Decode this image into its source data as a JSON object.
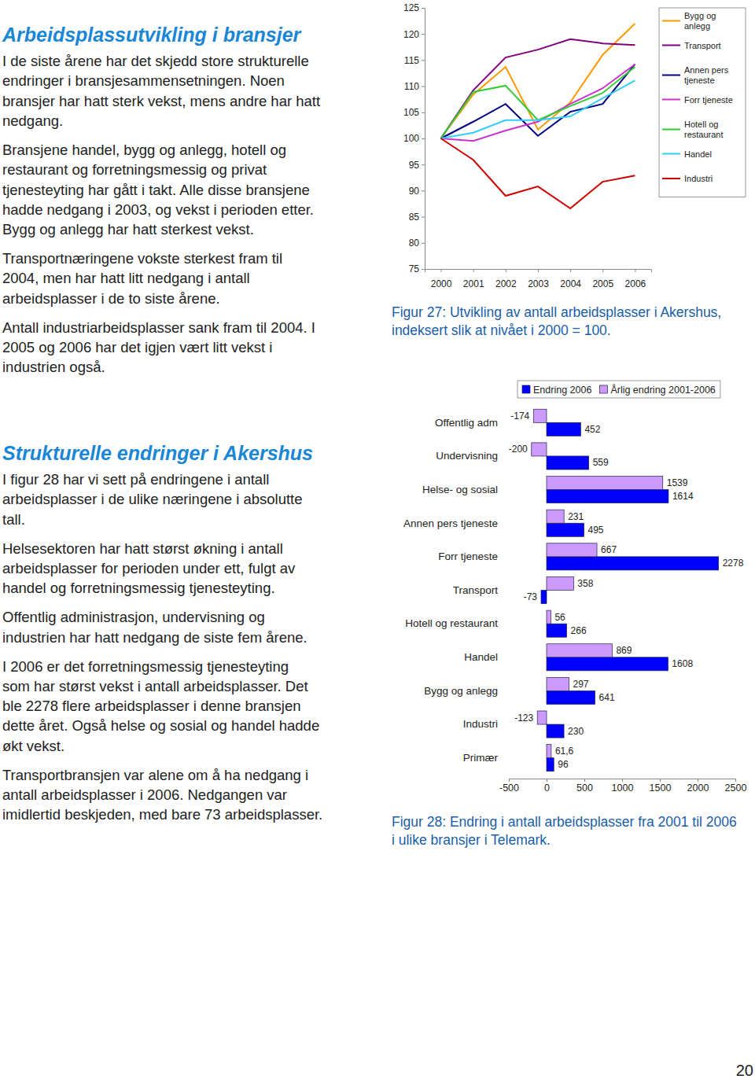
{
  "document": {
    "sections": [
      {
        "heading": "Arbeidsplassutvikling i bransjer",
        "paragraphs": [
          [
            "I de siste årene har det skjedd store strukturelle",
            "endringer i bransjesammensetningen. Noen",
            "bransjer har hatt sterk vekst, mens andre har hatt",
            "nedgang."
          ],
          [
            "Bransjene handel, bygg og anlegg, hotell og",
            "restaurant og forretningsmessig og privat",
            "tjenesteyting har gått i takt. Alle disse bransjene",
            "hadde nedgang i 2003, og vekst i perioden etter.",
            "Bygg og anlegg har hatt sterkest vekst."
          ],
          [
            "Transportnæringene vokste sterkest fram til",
            "2004, men har hatt litt nedgang i antall",
            "arbeidsplasser i de to siste årene."
          ],
          [
            "Antall industriarbeidsplasser sank fram til 2004. I",
            "2005 og 2006 har det igjen vært litt vekst i",
            "industrien også."
          ]
        ]
      },
      {
        "heading": "Strukturelle endringer i Akershus",
        "paragraphs": [
          [
            "I figur 28 har vi sett på endringene i antall",
            "arbeidsplasser i de ulike næringene i absolutte",
            "tall."
          ],
          [
            "Helsesektoren har hatt størst økning i antall",
            "arbeidsplasser for perioden under ett, fulgt av",
            "handel og forretningsmessig tjenesteyting."
          ],
          [
            "Offentlig administrasjon, undervisning og",
            "industrien har hatt nedgang de siste fem årene."
          ],
          [
            "I 2006 er det forretningsmessig tjenesteyting",
            "som har størst vekst i antall arbeidsplasser. Det",
            "ble 2278 flere arbeidsplasser i denne bransjen",
            "dette året. Også helse og sosial og handel hadde",
            "økt vekst."
          ],
          [
            "Transportbransjen var alene om å ha nedgang i",
            "antall arbeidsplasser i 2006. Nedgangen var",
            "imidlertid beskjeden, med bare 73 arbeidsplasser."
          ]
        ]
      }
    ],
    "page_number": 20
  },
  "chart_data": [
    {
      "type": "line",
      "title": "Figur 27: Utvikling av antall arbeidsplasser i Akershus, indeksert slik at nivået i 2000 = 100.",
      "categories": [
        "2000",
        "2001",
        "2002",
        "2003",
        "2004",
        "2005",
        "2006"
      ],
      "series": [
        {
          "name": "Bygg og anlegg",
          "color": "#ff9900",
          "values": [
            100,
            108.4,
            113.7,
            101.7,
            106.9,
            116,
            122
          ]
        },
        {
          "name": "Transport",
          "color": "#800080",
          "values": [
            100,
            109.2,
            115.5,
            117,
            119,
            118.2,
            117.9
          ]
        },
        {
          "name": "Annen pers tjeneste",
          "color": "#000080",
          "values": [
            100,
            103.2,
            106.6,
            100.5,
            105.1,
            106.6,
            114.2
          ]
        },
        {
          "name": "Forr tjeneste",
          "color": "#cc33cc",
          "values": [
            100,
            99.5,
            101.5,
            103.2,
            106.6,
            109.6,
            114.2
          ]
        },
        {
          "name": "Hotell og restaurant",
          "color": "#33cc33",
          "values": [
            100,
            108.9,
            110.1,
            103.5,
            106.2,
            108.7,
            113.7
          ]
        },
        {
          "name": "Handel",
          "color": "#33ccff",
          "values": [
            100,
            101.1,
            103.5,
            103.5,
            104.2,
            107.7,
            111.1
          ]
        },
        {
          "name": "Industri",
          "color": "#cc0000",
          "values": [
            100,
            95.9,
            89,
            90.8,
            86.6,
            91.7,
            92.9
          ]
        }
      ],
      "ylim": [
        75,
        125
      ],
      "yticks": [
        75,
        80,
        85,
        90,
        95,
        100,
        105,
        110,
        115,
        120,
        125
      ],
      "grid": false,
      "legend": "right"
    },
    {
      "type": "bar",
      "orientation": "horizontal",
      "title": "Figur 28: Endring i antall arbeidsplasser fra 2001 til 2006 i ulike bransjer i Telemark.",
      "categories": [
        "Offentlig adm",
        "Undervisning",
        "Helse- og sosial",
        "Annen pers tjeneste",
        "Forr tjeneste",
        "Transport",
        "Hotell og restaurant",
        "Handel",
        "Bygg og anlegg",
        "Industri",
        "Primær"
      ],
      "series": [
        {
          "name": "Endring 2006",
          "color": "#0000ff",
          "values": [
            452,
            559,
            1614,
            495,
            2278,
            -73,
            266,
            1608,
            641,
            230,
            96
          ]
        },
        {
          "name": "Årlig endring 2001-2006",
          "color": "#cc99ff",
          "values": [
            -174,
            -200,
            1539,
            231,
            667,
            358,
            56,
            869,
            297,
            -123,
            61.6
          ],
          "value_labels": [
            "-174",
            "-200",
            "1539",
            "231",
            "667",
            "358",
            "56",
            "869",
            "297",
            "-123",
            "61,6"
          ]
        }
      ],
      "xlim": [
        -500,
        2500
      ],
      "xticks": [
        -500,
        0,
        500,
        1000,
        1500,
        2000,
        2500
      ],
      "grid": false,
      "legend": "top",
      "data_labels": true
    }
  ]
}
